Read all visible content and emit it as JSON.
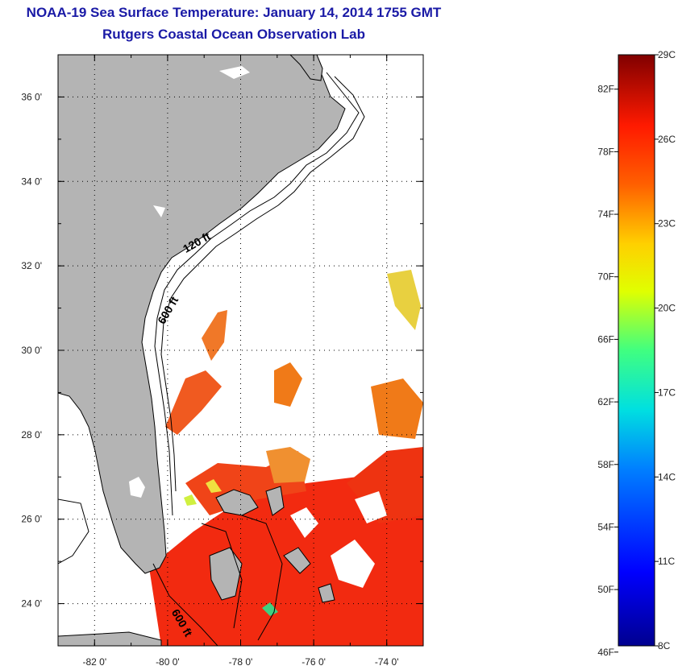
{
  "title": {
    "line1": "NOAA-19 Sea Surface Temperature:  January 14, 2014 1755 GMT",
    "line2": "Rutgers Coastal Ocean Observation Lab"
  },
  "map": {
    "lon_range": [
      -83,
      -73
    ],
    "lat_range": [
      23,
      37
    ],
    "lon_ticks": [
      {
        "value": -82,
        "label": "-82 0'"
      },
      {
        "value": -80,
        "label": "-80 0'"
      },
      {
        "value": -78,
        "label": "-78 0'"
      },
      {
        "value": -76,
        "label": "-76 0'"
      },
      {
        "value": -74,
        "label": "-74 0'"
      }
    ],
    "lat_ticks": [
      {
        "value": 24,
        "label": "24 0'"
      },
      {
        "value": 26,
        "label": "26 0'"
      },
      {
        "value": 28,
        "label": "28 0'"
      },
      {
        "value": 30,
        "label": "30 0'"
      },
      {
        "value": 32,
        "label": "32 0'"
      },
      {
        "value": 34,
        "label": "34 0'"
      },
      {
        "value": 36,
        "label": "36 0'"
      }
    ],
    "grid": "dotted",
    "land_color": "#b4b4b4",
    "contour_labels": [
      {
        "text": "120 ft",
        "lon": -79.5,
        "lat": 32.3,
        "rotation": -30
      },
      {
        "text": "600 ft",
        "lon": -80.1,
        "lat": 30.6,
        "rotation": -60
      },
      {
        "text": "600 ft",
        "lon": -79.9,
        "lat": 23.8,
        "rotation": 60
      }
    ]
  },
  "colorbar": {
    "min_c": 8,
    "max_c": 29,
    "fahrenheit_labels": [
      "82F",
      "78F",
      "74F",
      "70F",
      "66F",
      "62F",
      "58F",
      "54F",
      "50F",
      "46F"
    ],
    "celsius_labels": [
      "29C",
      "26C",
      "23C",
      "20C",
      "17C",
      "14C",
      "11C",
      "8C"
    ]
  }
}
